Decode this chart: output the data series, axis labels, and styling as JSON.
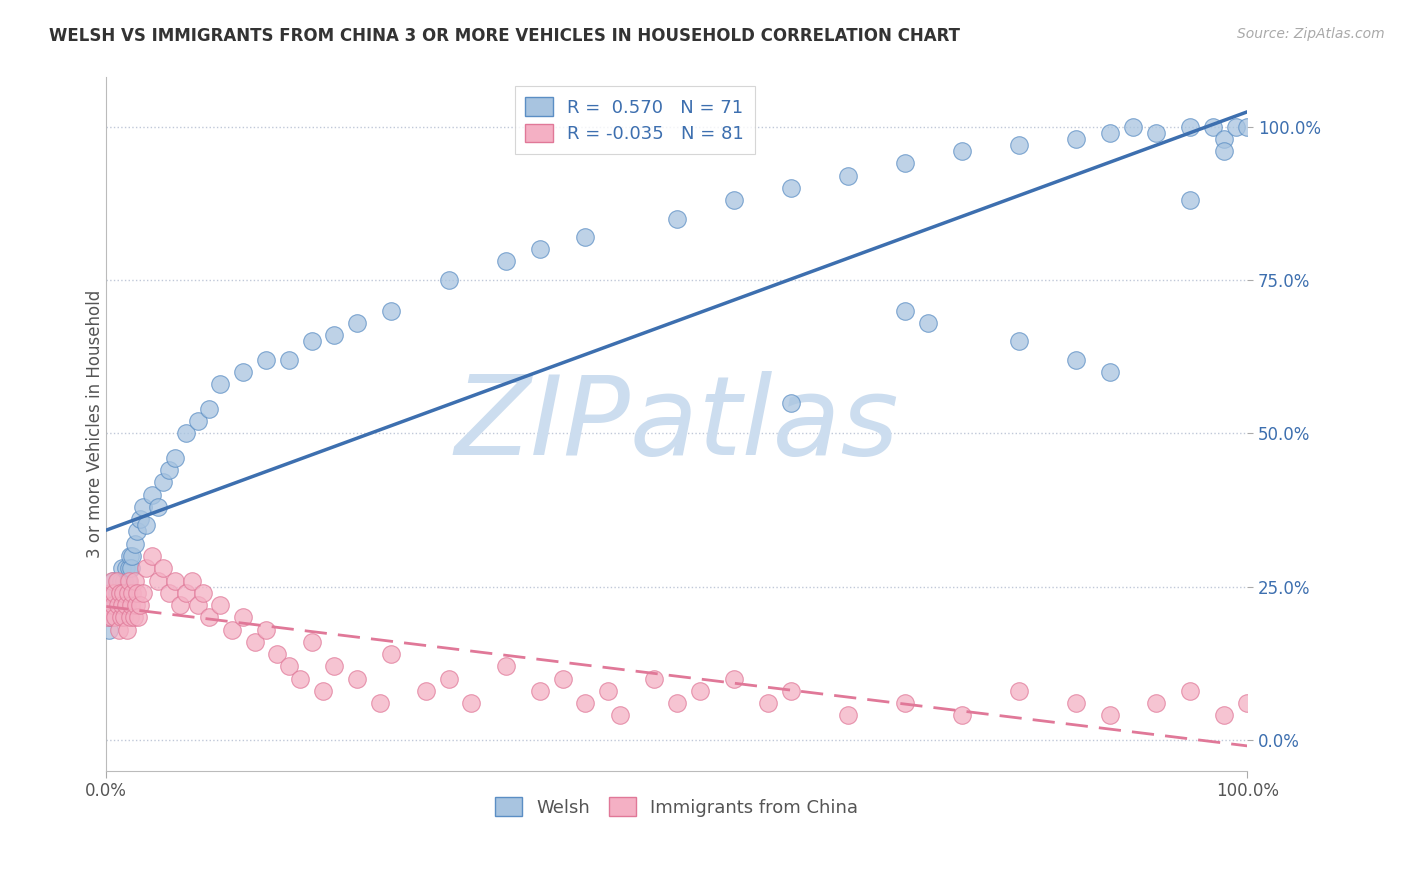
{
  "title": "WELSH VS IMMIGRANTS FROM CHINA 3 OR MORE VEHICLES IN HOUSEHOLD CORRELATION CHART",
  "source": "Source: ZipAtlas.com",
  "ylabel": "3 or more Vehicles in Household",
  "yticks": [
    "0.0%",
    "25.0%",
    "50.0%",
    "75.0%",
    "100.0%"
  ],
  "ytick_vals": [
    0,
    25,
    50,
    75,
    100
  ],
  "welsh_R": 0.57,
  "welsh_N": 71,
  "china_R": -0.035,
  "china_N": 81,
  "welsh_color": "#a8c4e0",
  "welsh_edge_color": "#5b8ec4",
  "welsh_line_color": "#3d6faf",
  "china_color": "#f4b0c4",
  "china_edge_color": "#e07898",
  "china_line_color": "#e07898",
  "watermark_color": "#ccddef",
  "background_color": "#ffffff",
  "welsh_x": [
    0.2,
    0.3,
    0.4,
    0.5,
    0.6,
    0.7,
    0.8,
    0.9,
    1.0,
    1.1,
    1.2,
    1.3,
    1.4,
    1.5,
    1.6,
    1.7,
    1.8,
    1.9,
    2.0,
    2.1,
    2.2,
    2.3,
    2.5,
    2.7,
    3.0,
    3.2,
    3.5,
    4.0,
    4.5,
    5.0,
    5.5,
    6.0,
    7.0,
    8.0,
    9.0,
    10.0,
    12.0,
    14.0,
    16.0,
    18.0,
    20.0,
    22.0,
    25.0,
    30.0,
    35.0,
    38.0,
    42.0,
    50.0,
    55.0,
    60.0,
    65.0,
    70.0,
    75.0,
    80.0,
    85.0,
    88.0,
    90.0,
    92.0,
    95.0,
    97.0,
    98.0,
    99.0,
    100.0,
    60.0,
    70.0,
    72.0,
    80.0,
    85.0,
    88.0,
    95.0,
    98.0
  ],
  "welsh_y": [
    18.0,
    20.0,
    22.0,
    24.0,
    26.0,
    20.0,
    22.0,
    24.0,
    26.0,
    22.0,
    24.0,
    26.0,
    28.0,
    24.0,
    26.0,
    28.0,
    22.0,
    26.0,
    28.0,
    30.0,
    28.0,
    30.0,
    32.0,
    34.0,
    36.0,
    38.0,
    35.0,
    40.0,
    38.0,
    42.0,
    44.0,
    46.0,
    50.0,
    52.0,
    54.0,
    58.0,
    60.0,
    62.0,
    62.0,
    65.0,
    66.0,
    68.0,
    70.0,
    75.0,
    78.0,
    80.0,
    82.0,
    85.0,
    88.0,
    90.0,
    92.0,
    94.0,
    96.0,
    97.0,
    98.0,
    99.0,
    100.0,
    99.0,
    100.0,
    100.0,
    98.0,
    100.0,
    100.0,
    55.0,
    70.0,
    68.0,
    65.0,
    62.0,
    60.0,
    88.0,
    96.0
  ],
  "china_x": [
    0.1,
    0.2,
    0.3,
    0.4,
    0.5,
    0.6,
    0.7,
    0.8,
    0.9,
    1.0,
    1.1,
    1.2,
    1.3,
    1.4,
    1.5,
    1.6,
    1.7,
    1.8,
    1.9,
    2.0,
    2.1,
    2.2,
    2.3,
    2.4,
    2.5,
    2.6,
    2.7,
    2.8,
    3.0,
    3.2,
    3.5,
    4.0,
    4.5,
    5.0,
    5.5,
    6.0,
    6.5,
    7.0,
    7.5,
    8.0,
    8.5,
    9.0,
    10.0,
    11.0,
    12.0,
    13.0,
    14.0,
    15.0,
    16.0,
    17.0,
    18.0,
    19.0,
    20.0,
    22.0,
    24.0,
    25.0,
    28.0,
    30.0,
    32.0,
    35.0,
    38.0,
    40.0,
    42.0,
    44.0,
    45.0,
    48.0,
    50.0,
    52.0,
    55.0,
    58.0,
    60.0,
    65.0,
    70.0,
    75.0,
    80.0,
    85.0,
    88.0,
    92.0,
    95.0,
    98.0,
    100.0
  ],
  "china_y": [
    20.0,
    22.0,
    24.0,
    20.0,
    26.0,
    22.0,
    24.0,
    20.0,
    26.0,
    22.0,
    18.0,
    24.0,
    20.0,
    22.0,
    24.0,
    20.0,
    22.0,
    18.0,
    24.0,
    26.0,
    20.0,
    22.0,
    24.0,
    20.0,
    26.0,
    22.0,
    24.0,
    20.0,
    22.0,
    24.0,
    28.0,
    30.0,
    26.0,
    28.0,
    24.0,
    26.0,
    22.0,
    24.0,
    26.0,
    22.0,
    24.0,
    20.0,
    22.0,
    18.0,
    20.0,
    16.0,
    18.0,
    14.0,
    12.0,
    10.0,
    16.0,
    8.0,
    12.0,
    10.0,
    6.0,
    14.0,
    8.0,
    10.0,
    6.0,
    12.0,
    8.0,
    10.0,
    6.0,
    8.0,
    4.0,
    10.0,
    6.0,
    8.0,
    10.0,
    6.0,
    8.0,
    4.0,
    6.0,
    4.0,
    8.0,
    6.0,
    4.0,
    6.0,
    8.0,
    4.0,
    6.0
  ]
}
